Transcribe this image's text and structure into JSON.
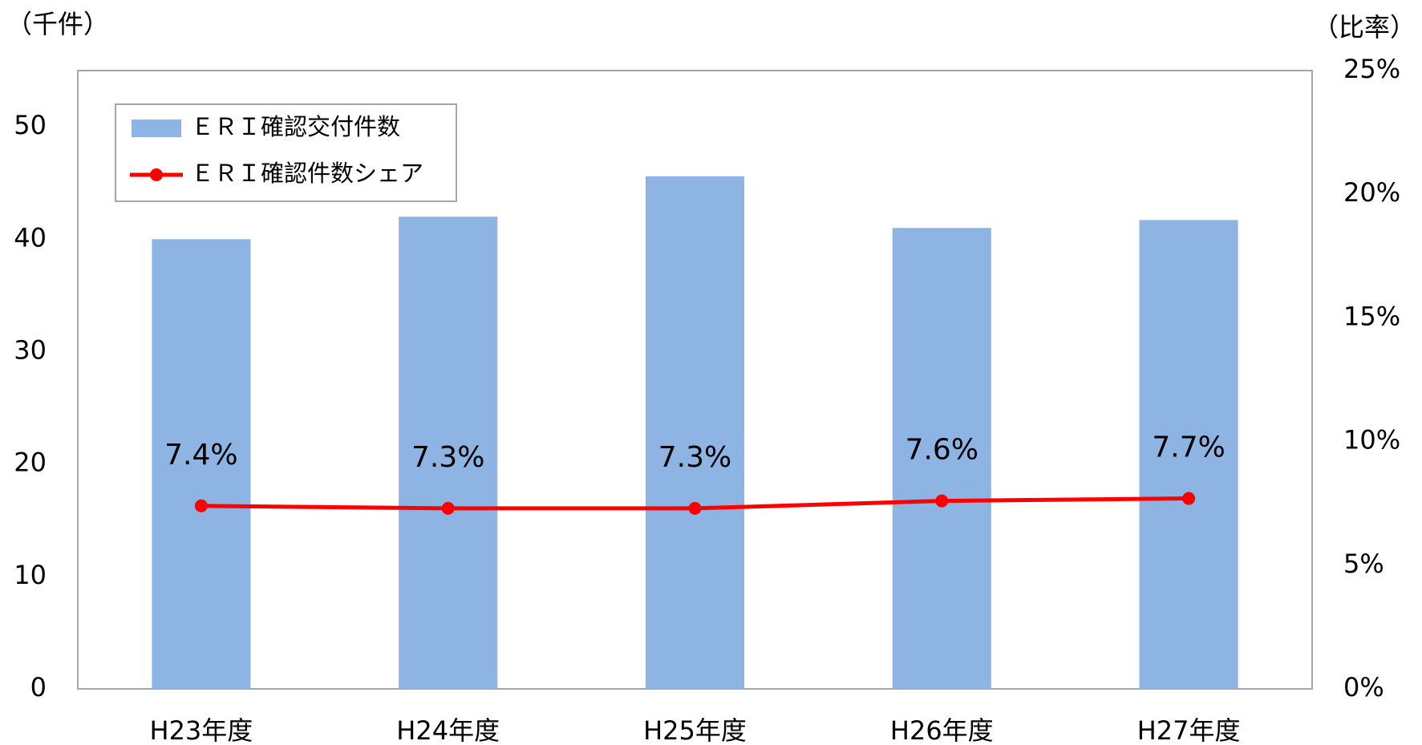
{
  "chart_data": {
    "type": "bar+line",
    "y_label": "（千件）",
    "y2_label": "（比率）",
    "categories": [
      "H23年度",
      "H24年度",
      "H25年度",
      "H26年度",
      "H27年度"
    ],
    "series": [
      {
        "name": "ＥＲＩ確認交付件数",
        "type": "bar",
        "color": "#8eb4e3",
        "values": [
          40.0,
          42.0,
          45.6,
          41.0,
          41.7
        ]
      },
      {
        "name": "ＥＲＩ確認件数シェア",
        "type": "line",
        "axis": "y2",
        "color": "#ff0000",
        "values": [
          7.4,
          7.3,
          7.3,
          7.6,
          7.7
        ],
        "value_labels": [
          "7.4%",
          "7.3%",
          "7.3%",
          "7.6%",
          "7.7%"
        ]
      }
    ],
    "ylim": [
      0,
      55
    ],
    "yticks": [
      0,
      10,
      20,
      30,
      40,
      50
    ],
    "y2lim": [
      0,
      25
    ],
    "y2ticks": [
      {
        "value": 0,
        "label": "0%"
      },
      {
        "value": 5,
        "label": "5%"
      },
      {
        "value": 10,
        "label": "10%"
      },
      {
        "value": 15,
        "label": "15%"
      },
      {
        "value": 20,
        "label": "20%"
      },
      {
        "value": 25,
        "label": "25%"
      }
    ],
    "legend": "upper left"
  }
}
